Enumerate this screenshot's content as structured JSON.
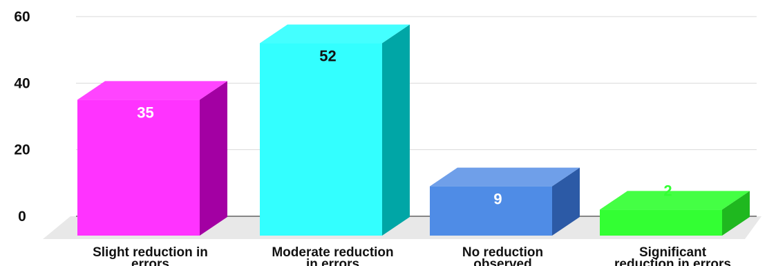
{
  "chart_data": {
    "type": "bar",
    "categories": [
      [
        "Slight reduction in",
        "errors"
      ],
      [
        "Moderate reduction",
        "in errors"
      ],
      [
        "No reduction",
        "observed"
      ],
      [
        "Significant",
        "reduction in errors"
      ]
    ],
    "values": [
      35,
      52,
      9,
      2
    ],
    "colors": [
      "#ff33ff",
      "#33ffff",
      "#4f8ce6",
      "#33ff33"
    ],
    "side_colors": [
      "#a300a3",
      "#00a6a6",
      "#2c5aa6",
      "#1fb81f"
    ],
    "top_colors": [
      "#ff44ff",
      "#44ffff",
      "#6f9fe9",
      "#44ff44"
    ],
    "label_colors": [
      "#ffffff",
      "#111111",
      "#ffffff",
      "#33ff33"
    ],
    "yticks": [
      0,
      20,
      40,
      60
    ],
    "ylim": [
      0,
      60
    ],
    "grid": true,
    "legend": "none"
  }
}
